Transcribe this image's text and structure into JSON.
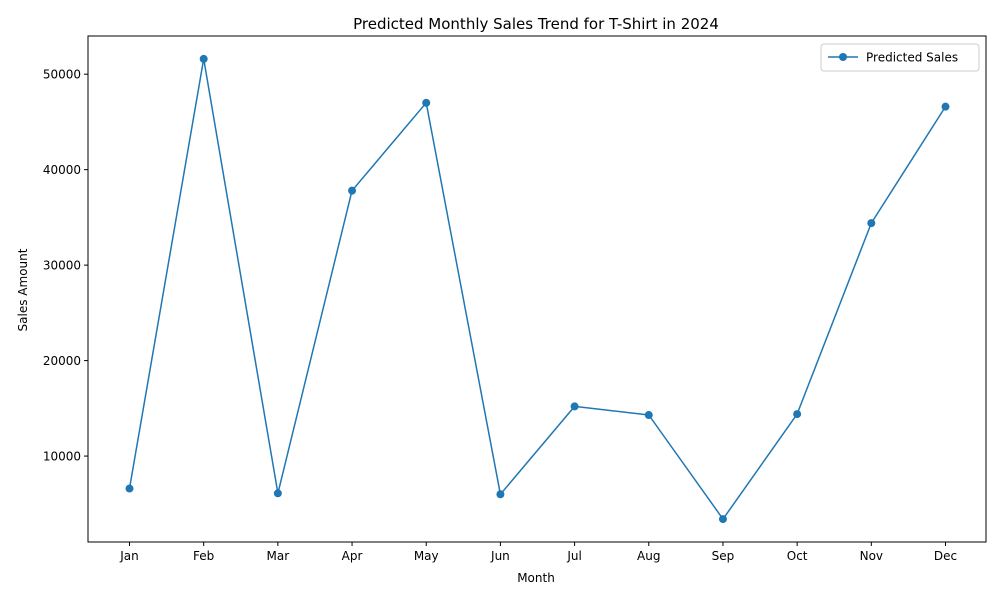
{
  "chart_data": {
    "type": "line",
    "title": "Predicted Monthly Sales Trend for T-Shirt in 2024",
    "xlabel": "Month",
    "ylabel": "Sales Amount",
    "categories": [
      "Jan",
      "Feb",
      "Mar",
      "Apr",
      "May",
      "Jun",
      "Jul",
      "Aug",
      "Sep",
      "Oct",
      "Nov",
      "Dec"
    ],
    "series": [
      {
        "name": "Predicted Sales",
        "values": [
          6600,
          51600,
          6100,
          37800,
          47000,
          6000,
          15200,
          14300,
          3400,
          14400,
          34400,
          46600
        ]
      }
    ],
    "ylim": [
      1000,
      54000
    ],
    "yticks": [
      10000,
      20000,
      30000,
      40000,
      50000
    ],
    "grid": false,
    "legend_position": "top-right",
    "colors": {
      "series": "#1f77b4",
      "axis": "#000000",
      "background": "#ffffff"
    }
  }
}
